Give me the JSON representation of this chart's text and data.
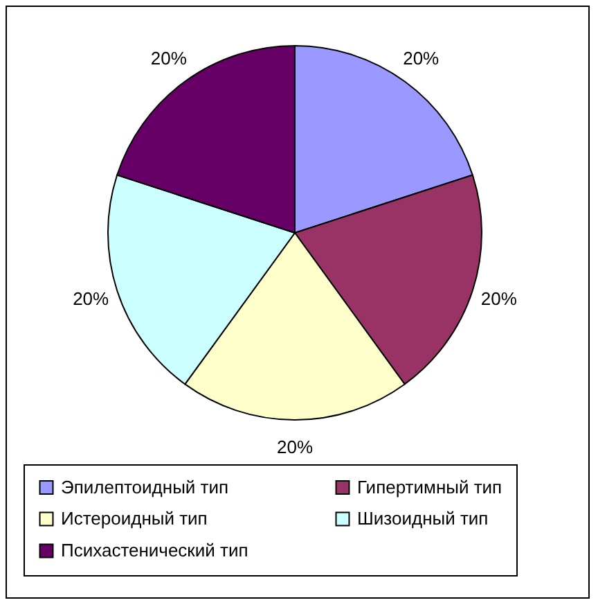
{
  "chart_data": {
    "type": "pie",
    "categories": [
      "Эпилептоидный тип",
      "Гипертимный тип",
      "Истероидный тип",
      "Шизоидный тип",
      "Психастенический тип"
    ],
    "values": [
      20,
      20,
      20,
      20,
      20
    ],
    "colors": [
      "#9999ff",
      "#993366",
      "#ffffcc",
      "#ccffff",
      "#660066"
    ],
    "value_labels": [
      "20%",
      "20%",
      "20%",
      "20%",
      "20%"
    ],
    "legend": "bottom"
  }
}
